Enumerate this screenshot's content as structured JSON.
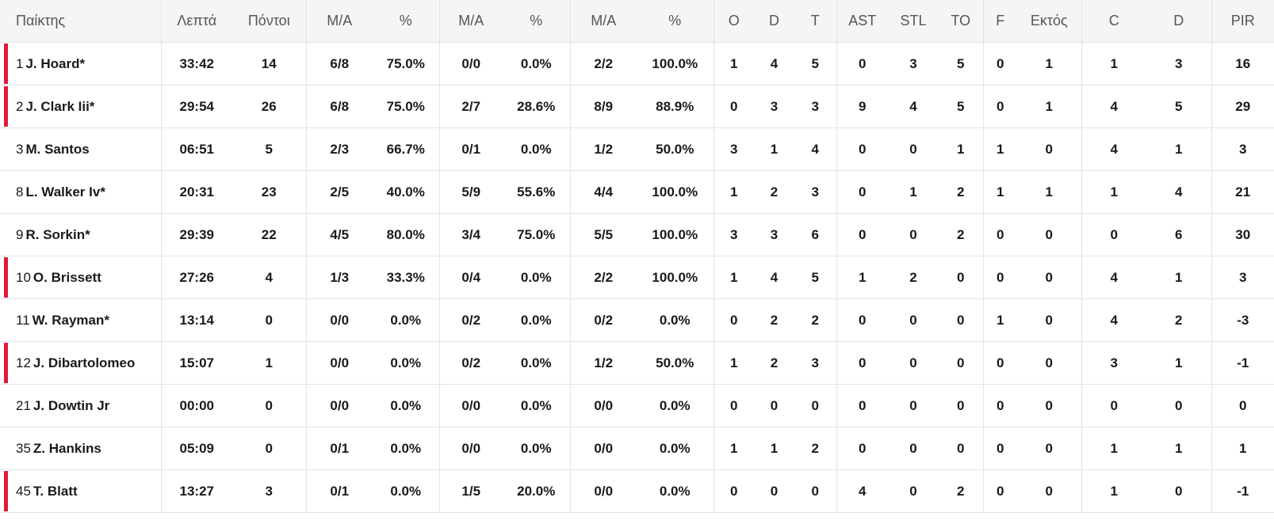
{
  "accent_color": "#e0193a",
  "headers": [
    "Παίκτης",
    "Λεπτά",
    "Πόντοι",
    "Μ/Α",
    "%",
    "Μ/Α",
    "%",
    "Μ/Α",
    "%",
    "O",
    "D",
    "T",
    "AST",
    "STL",
    "TO",
    "F",
    "Εκτός",
    "C",
    "D",
    "PIR"
  ],
  "rows": [
    {
      "num": "1",
      "name": "J. Hoard*",
      "marked": true,
      "stats": [
        "33:42",
        "14",
        "6/8",
        "75.0%",
        "0/0",
        "0.0%",
        "2/2",
        "100.0%",
        "1",
        "4",
        "5",
        "0",
        "3",
        "5",
        "0",
        "1",
        "1",
        "3",
        "16"
      ]
    },
    {
      "num": "2",
      "name": "J. Clark Iii*",
      "marked": true,
      "stats": [
        "29:54",
        "26",
        "6/8",
        "75.0%",
        "2/7",
        "28.6%",
        "8/9",
        "88.9%",
        "0",
        "3",
        "3",
        "9",
        "4",
        "5",
        "0",
        "1",
        "4",
        "5",
        "29"
      ]
    },
    {
      "num": "3",
      "name": "M. Santos",
      "marked": false,
      "stats": [
        "06:51",
        "5",
        "2/3",
        "66.7%",
        "0/1",
        "0.0%",
        "1/2",
        "50.0%",
        "3",
        "1",
        "4",
        "0",
        "0",
        "1",
        "1",
        "0",
        "4",
        "1",
        "3"
      ]
    },
    {
      "num": "8",
      "name": "L. Walker Iv*",
      "marked": false,
      "stats": [
        "20:31",
        "23",
        "2/5",
        "40.0%",
        "5/9",
        "55.6%",
        "4/4",
        "100.0%",
        "1",
        "2",
        "3",
        "0",
        "1",
        "2",
        "1",
        "1",
        "1",
        "4",
        "21"
      ]
    },
    {
      "num": "9",
      "name": "R. Sorkin*",
      "marked": false,
      "stats": [
        "29:39",
        "22",
        "4/5",
        "80.0%",
        "3/4",
        "75.0%",
        "5/5",
        "100.0%",
        "3",
        "3",
        "6",
        "0",
        "0",
        "2",
        "0",
        "0",
        "0",
        "6",
        "30"
      ]
    },
    {
      "num": "10",
      "name": "O. Brissett",
      "marked": true,
      "stats": [
        "27:26",
        "4",
        "1/3",
        "33.3%",
        "0/4",
        "0.0%",
        "2/2",
        "100.0%",
        "1",
        "4",
        "5",
        "1",
        "2",
        "0",
        "0",
        "0",
        "4",
        "1",
        "3"
      ]
    },
    {
      "num": "11",
      "name": "W. Rayman*",
      "marked": false,
      "stats": [
        "13:14",
        "0",
        "0/0",
        "0.0%",
        "0/2",
        "0.0%",
        "0/2",
        "0.0%",
        "0",
        "2",
        "2",
        "0",
        "0",
        "0",
        "1",
        "0",
        "4",
        "2",
        "-3"
      ]
    },
    {
      "num": "12",
      "name": "J. Dibartolomeo",
      "marked": true,
      "stats": [
        "15:07",
        "1",
        "0/0",
        "0.0%",
        "0/2",
        "0.0%",
        "1/2",
        "50.0%",
        "1",
        "2",
        "3",
        "0",
        "0",
        "0",
        "0",
        "0",
        "3",
        "1",
        "-1"
      ]
    },
    {
      "num": "21",
      "name": "J. Dowtin Jr",
      "marked": false,
      "stats": [
        "00:00",
        "0",
        "0/0",
        "0.0%",
        "0/0",
        "0.0%",
        "0/0",
        "0.0%",
        "0",
        "0",
        "0",
        "0",
        "0",
        "0",
        "0",
        "0",
        "0",
        "0",
        "0"
      ]
    },
    {
      "num": "35",
      "name": "Z. Hankins",
      "marked": false,
      "stats": [
        "05:09",
        "0",
        "0/1",
        "0.0%",
        "0/0",
        "0.0%",
        "0/0",
        "0.0%",
        "1",
        "1",
        "2",
        "0",
        "0",
        "0",
        "0",
        "0",
        "1",
        "1",
        "1"
      ]
    },
    {
      "num": "45",
      "name": "T. Blatt",
      "marked": true,
      "stats": [
        "13:27",
        "3",
        "0/1",
        "0.0%",
        "1/5",
        "20.0%",
        "0/0",
        "0.0%",
        "0",
        "0",
        "0",
        "4",
        "0",
        "2",
        "0",
        "0",
        "1",
        "0",
        "-1"
      ]
    }
  ]
}
